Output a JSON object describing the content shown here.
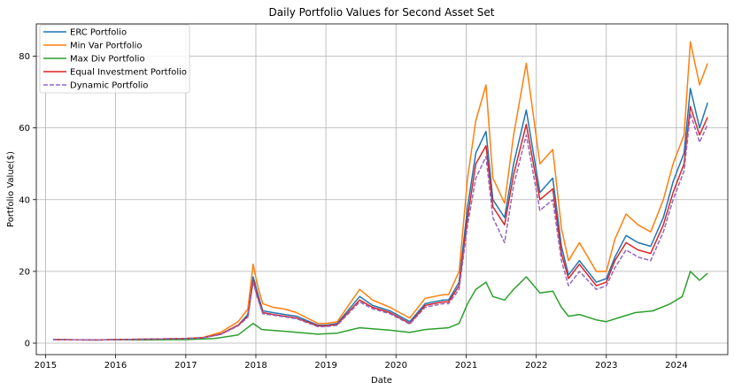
{
  "chart_data": {
    "type": "line",
    "title": "Daily Portfolio Values for Second Asset Set",
    "xlabel": "Date",
    "ylabel": "Portfolio Value($)",
    "xlim": [
      "2014-11-14",
      "2024-09-25"
    ],
    "ylim": [
      -3.2,
      89
    ],
    "x_ticks": [
      "2015",
      "2016",
      "2017",
      "2018",
      "2019",
      "2020",
      "2021",
      "2022",
      "2023",
      "2024"
    ],
    "y_ticks": [
      0,
      20,
      40,
      60,
      80
    ],
    "grid": true,
    "legend_position": "top-left",
    "series": [
      {
        "name": "ERC Portfolio",
        "color": "#1f77b4",
        "dashed": false,
        "points": [
          [
            "2015-02-10",
            1.0
          ],
          [
            "2015-06-01",
            0.95
          ],
          [
            "2015-10-01",
            0.9
          ],
          [
            "2016-01-01",
            1.0
          ],
          [
            "2016-05-01",
            1.1
          ],
          [
            "2016-09-01",
            1.2
          ],
          [
            "2017-01-01",
            1.3
          ],
          [
            "2017-04-01",
            1.5
          ],
          [
            "2017-07-01",
            2.5
          ],
          [
            "2017-10-01",
            5.0
          ],
          [
            "2017-11-20",
            8.0
          ],
          [
            "2017-12-18",
            18.5
          ],
          [
            "2018-01-10",
            14.0
          ],
          [
            "2018-02-06",
            9.0
          ],
          [
            "2018-04-01",
            8.5
          ],
          [
            "2018-06-01",
            8.0
          ],
          [
            "2018-08-01",
            7.5
          ],
          [
            "2018-11-20",
            5.0
          ],
          [
            "2019-01-01",
            5.0
          ],
          [
            "2019-03-01",
            5.5
          ],
          [
            "2019-06-26",
            13.0
          ],
          [
            "2019-09-01",
            10.5
          ],
          [
            "2019-12-01",
            9.0
          ],
          [
            "2020-03-13",
            6.0
          ],
          [
            "2020-06-01",
            11.0
          ],
          [
            "2020-09-01",
            12.0
          ],
          [
            "2020-10-01",
            12.0
          ],
          [
            "2020-11-25",
            17.0
          ],
          [
            "2021-01-08",
            38.0
          ],
          [
            "2021-02-20",
            53.0
          ],
          [
            "2021-04-14",
            59.0
          ],
          [
            "2021-05-20",
            40.0
          ],
          [
            "2021-07-20",
            35.0
          ],
          [
            "2021-09-05",
            50.0
          ],
          [
            "2021-11-10",
            65.0
          ],
          [
            "2022-01-20",
            42.0
          ],
          [
            "2022-03-28",
            46.0
          ],
          [
            "2022-05-12",
            27.0
          ],
          [
            "2022-06-18",
            19.0
          ],
          [
            "2022-08-14",
            23.0
          ],
          [
            "2022-11-10",
            17.0
          ],
          [
            "2023-01-01",
            18.0
          ],
          [
            "2023-02-15",
            24.0
          ],
          [
            "2023-04-14",
            30.0
          ],
          [
            "2023-06-15",
            28.0
          ],
          [
            "2023-08-20",
            27.0
          ],
          [
            "2023-10-25",
            35.0
          ],
          [
            "2023-12-15",
            45.0
          ],
          [
            "2024-02-10",
            53.0
          ],
          [
            "2024-03-14",
            71.0
          ],
          [
            "2024-05-01",
            60.0
          ],
          [
            "2024-06-12",
            67.0
          ]
        ]
      },
      {
        "name": "Min Var Portfolio",
        "color": "#ff7f0e",
        "dashed": false,
        "points": [
          [
            "2015-02-10",
            1.0
          ],
          [
            "2015-06-01",
            0.95
          ],
          [
            "2015-10-01",
            0.9
          ],
          [
            "2016-01-01",
            1.0
          ],
          [
            "2016-05-01",
            1.1
          ],
          [
            "2016-09-01",
            1.2
          ],
          [
            "2017-01-01",
            1.3
          ],
          [
            "2017-04-01",
            1.6
          ],
          [
            "2017-07-01",
            3.0
          ],
          [
            "2017-10-01",
            6.0
          ],
          [
            "2017-11-20",
            9.5
          ],
          [
            "2017-12-18",
            22.0
          ],
          [
            "2018-01-10",
            16.0
          ],
          [
            "2018-02-06",
            11.0
          ],
          [
            "2018-04-01",
            10.0
          ],
          [
            "2018-06-01",
            9.5
          ],
          [
            "2018-08-01",
            8.5
          ],
          [
            "2018-11-20",
            5.5
          ],
          [
            "2019-01-01",
            5.5
          ],
          [
            "2019-03-01",
            6.0
          ],
          [
            "2019-06-26",
            15.0
          ],
          [
            "2019-09-01",
            12.0
          ],
          [
            "2019-12-01",
            10.0
          ],
          [
            "2020-03-13",
            7.0
          ],
          [
            "2020-06-01",
            12.5
          ],
          [
            "2020-09-01",
            13.5
          ],
          [
            "2020-10-01",
            13.5
          ],
          [
            "2020-11-25",
            20.0
          ],
          [
            "2021-01-08",
            46.0
          ],
          [
            "2021-02-20",
            62.0
          ],
          [
            "2021-04-14",
            72.0
          ],
          [
            "2021-05-20",
            46.0
          ],
          [
            "2021-07-20",
            39.0
          ],
          [
            "2021-09-05",
            58.0
          ],
          [
            "2021-11-10",
            78.0
          ],
          [
            "2022-01-20",
            50.0
          ],
          [
            "2022-03-28",
            54.0
          ],
          [
            "2022-05-12",
            32.0
          ],
          [
            "2022-06-18",
            23.0
          ],
          [
            "2022-08-14",
            28.0
          ],
          [
            "2022-11-10",
            20.0
          ],
          [
            "2023-01-01",
            20.0
          ],
          [
            "2023-02-15",
            29.0
          ],
          [
            "2023-04-14",
            36.0
          ],
          [
            "2023-06-15",
            33.0
          ],
          [
            "2023-08-20",
            31.0
          ],
          [
            "2023-10-25",
            40.0
          ],
          [
            "2023-12-15",
            50.0
          ],
          [
            "2024-02-10",
            58.0
          ],
          [
            "2024-03-14",
            84.0
          ],
          [
            "2024-05-01",
            72.0
          ],
          [
            "2024-06-12",
            78.0
          ]
        ]
      },
      {
        "name": "Max Div Portfolio",
        "color": "#2ca02c",
        "dashed": false,
        "points": [
          [
            "2015-02-10",
            1.0
          ],
          [
            "2015-06-01",
            0.95
          ],
          [
            "2015-10-01",
            0.9
          ],
          [
            "2016-01-01",
            0.95
          ],
          [
            "2016-06-01",
            0.9
          ],
          [
            "2017-01-01",
            1.0
          ],
          [
            "2017-06-01",
            1.3
          ],
          [
            "2017-10-01",
            2.3
          ],
          [
            "2017-12-18",
            5.5
          ],
          [
            "2018-02-01",
            3.8
          ],
          [
            "2018-06-01",
            3.3
          ],
          [
            "2018-11-20",
            2.5
          ],
          [
            "2019-03-01",
            2.8
          ],
          [
            "2019-06-26",
            4.3
          ],
          [
            "2019-12-01",
            3.6
          ],
          [
            "2020-03-13",
            3.0
          ],
          [
            "2020-06-01",
            3.8
          ],
          [
            "2020-10-01",
            4.3
          ],
          [
            "2020-11-25",
            5.5
          ],
          [
            "2021-01-08",
            11.0
          ],
          [
            "2021-02-20",
            15.0
          ],
          [
            "2021-04-14",
            17.0
          ],
          [
            "2021-05-20",
            13.0
          ],
          [
            "2021-07-20",
            12.0
          ],
          [
            "2021-09-05",
            15.0
          ],
          [
            "2021-11-10",
            18.5
          ],
          [
            "2022-01-20",
            14.0
          ],
          [
            "2022-03-28",
            14.5
          ],
          [
            "2022-05-12",
            10.0
          ],
          [
            "2022-06-18",
            7.5
          ],
          [
            "2022-08-14",
            8.0
          ],
          [
            "2022-11-10",
            6.5
          ],
          [
            "2023-01-01",
            6.0
          ],
          [
            "2023-03-01",
            7.0
          ],
          [
            "2023-06-01",
            8.5
          ],
          [
            "2023-09-01",
            9.0
          ],
          [
            "2023-12-01",
            11.0
          ],
          [
            "2024-02-01",
            13.0
          ],
          [
            "2024-03-14",
            20.0
          ],
          [
            "2024-05-01",
            17.5
          ],
          [
            "2024-06-12",
            19.5
          ]
        ]
      },
      {
        "name": "Equal Investment Portfolio",
        "color": "#d62728",
        "dashed": false,
        "points": [
          [
            "2015-02-10",
            1.0
          ],
          [
            "2015-06-01",
            0.95
          ],
          [
            "2015-10-01",
            0.9
          ],
          [
            "2016-01-01",
            1.0
          ],
          [
            "2016-05-01",
            1.1
          ],
          [
            "2016-09-01",
            1.2
          ],
          [
            "2017-01-01",
            1.3
          ],
          [
            "2017-04-01",
            1.5
          ],
          [
            "2017-07-01",
            2.5
          ],
          [
            "2017-10-01",
            5.0
          ],
          [
            "2017-11-20",
            7.5
          ],
          [
            "2017-12-18",
            17.5
          ],
          [
            "2018-01-10",
            13.0
          ],
          [
            "2018-02-06",
            8.5
          ],
          [
            "2018-04-01",
            8.0
          ],
          [
            "2018-06-01",
            7.5
          ],
          [
            "2018-08-01",
            7.0
          ],
          [
            "2018-11-20",
            4.8
          ],
          [
            "2019-01-01",
            4.8
          ],
          [
            "2019-03-01",
            5.2
          ],
          [
            "2019-06-26",
            12.0
          ],
          [
            "2019-09-01",
            10.0
          ],
          [
            "2019-12-01",
            8.5
          ],
          [
            "2020-03-13",
            5.5
          ],
          [
            "2020-06-01",
            10.5
          ],
          [
            "2020-09-01",
            11.5
          ],
          [
            "2020-10-01",
            11.5
          ],
          [
            "2020-11-25",
            16.0
          ],
          [
            "2021-01-08",
            35.0
          ],
          [
            "2021-02-20",
            50.0
          ],
          [
            "2021-04-14",
            55.0
          ],
          [
            "2021-05-20",
            38.0
          ],
          [
            "2021-07-20",
            33.0
          ],
          [
            "2021-09-05",
            47.0
          ],
          [
            "2021-11-10",
            61.0
          ],
          [
            "2022-01-20",
            40.0
          ],
          [
            "2022-03-28",
            43.0
          ],
          [
            "2022-05-12",
            25.0
          ],
          [
            "2022-06-18",
            18.0
          ],
          [
            "2022-08-14",
            22.0
          ],
          [
            "2022-11-10",
            16.0
          ],
          [
            "2023-01-01",
            17.0
          ],
          [
            "2023-02-15",
            23.0
          ],
          [
            "2023-04-14",
            28.0
          ],
          [
            "2023-06-15",
            26.0
          ],
          [
            "2023-08-20",
            25.0
          ],
          [
            "2023-10-25",
            33.0
          ],
          [
            "2023-12-15",
            42.0
          ],
          [
            "2024-02-10",
            50.0
          ],
          [
            "2024-03-14",
            66.0
          ],
          [
            "2024-05-01",
            58.0
          ],
          [
            "2024-06-12",
            63.0
          ]
        ]
      },
      {
        "name": "Dynamic Portfolio",
        "color": "#9467bd",
        "dashed": true,
        "points": [
          [
            "2015-02-10",
            1.0
          ],
          [
            "2015-06-01",
            0.95
          ],
          [
            "2015-10-01",
            0.9
          ],
          [
            "2016-01-01",
            1.0
          ],
          [
            "2016-05-01",
            1.1
          ],
          [
            "2016-09-01",
            1.2
          ],
          [
            "2017-01-01",
            1.3
          ],
          [
            "2017-04-01",
            1.5
          ],
          [
            "2017-07-01",
            2.4
          ],
          [
            "2017-10-01",
            4.8
          ],
          [
            "2017-11-20",
            7.2
          ],
          [
            "2017-12-18",
            17.0
          ],
          [
            "2018-01-10",
            12.5
          ],
          [
            "2018-02-06",
            8.2
          ],
          [
            "2018-04-01",
            7.8
          ],
          [
            "2018-06-01",
            7.3
          ],
          [
            "2018-08-01",
            6.8
          ],
          [
            "2018-11-20",
            4.6
          ],
          [
            "2019-01-01",
            4.6
          ],
          [
            "2019-03-01",
            5.0
          ],
          [
            "2019-06-26",
            11.5
          ],
          [
            "2019-09-01",
            9.6
          ],
          [
            "2019-12-01",
            8.2
          ],
          [
            "2020-03-13",
            5.3
          ],
          [
            "2020-06-01",
            10.0
          ],
          [
            "2020-09-01",
            11.0
          ],
          [
            "2020-10-01",
            11.0
          ],
          [
            "2020-11-25",
            15.0
          ],
          [
            "2021-01-08",
            33.0
          ],
          [
            "2021-02-20",
            46.0
          ],
          [
            "2021-04-14",
            52.0
          ],
          [
            "2021-05-20",
            35.0
          ],
          [
            "2021-07-20",
            28.0
          ],
          [
            "2021-09-05",
            44.0
          ],
          [
            "2021-11-10",
            58.0
          ],
          [
            "2022-01-20",
            37.0
          ],
          [
            "2022-03-28",
            40.0
          ],
          [
            "2022-05-12",
            23.0
          ],
          [
            "2022-06-18",
            16.0
          ],
          [
            "2022-08-14",
            20.0
          ],
          [
            "2022-11-10",
            15.0
          ],
          [
            "2023-01-01",
            16.0
          ],
          [
            "2023-02-15",
            21.0
          ],
          [
            "2023-04-14",
            26.0
          ],
          [
            "2023-06-15",
            24.0
          ],
          [
            "2023-08-20",
            23.0
          ],
          [
            "2023-10-25",
            31.0
          ],
          [
            "2023-12-15",
            40.0
          ],
          [
            "2024-02-10",
            48.0
          ],
          [
            "2024-03-14",
            64.0
          ],
          [
            "2024-05-01",
            56.0
          ],
          [
            "2024-06-12",
            61.0
          ]
        ]
      }
    ]
  }
}
